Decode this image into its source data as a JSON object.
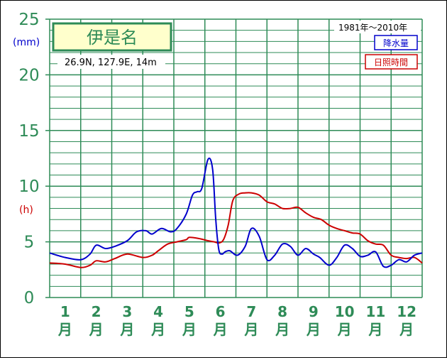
{
  "chart_data": {
    "type": "line",
    "station": "伊是名",
    "location": "26.9N,  127.9E,  14m",
    "period": "1981年〜2010年",
    "left_unit_top": "(mm)",
    "left_unit_bottom": "(h)",
    "y_ticks": [
      "0",
      "5",
      "10",
      "15",
      "20",
      "25"
    ],
    "ylim": [
      0,
      25
    ],
    "month_numbers": [
      "1",
      "2",
      "3",
      "4",
      "5",
      "6",
      "7",
      "8",
      "9",
      "10",
      "11",
      "12"
    ],
    "month_suffix": "月",
    "grid": true,
    "legend_position": "top-right",
    "series": [
      {
        "name": "降水量",
        "color": "#0000cc",
        "x": [
          0.5,
          1.0,
          1.5,
          1.8,
          2.0,
          2.3,
          2.6,
          3.0,
          3.3,
          3.6,
          3.8,
          4.1,
          4.4,
          4.6,
          4.9,
          5.1,
          5.25,
          5.4,
          5.6,
          5.75,
          5.85,
          5.95,
          6.05,
          6.15,
          6.3,
          6.55,
          6.8,
          7.0,
          7.25,
          7.5,
          7.75,
          8.0,
          8.25,
          8.5,
          8.75,
          9.0,
          9.2,
          9.5,
          9.75,
          10.0,
          10.25,
          10.5,
          10.75,
          11.0,
          11.25,
          11.5,
          11.75,
          12.0,
          12.25,
          12.5
        ],
        "values": [
          4.0,
          3.6,
          3.4,
          3.9,
          4.7,
          4.4,
          4.6,
          5.1,
          5.9,
          6.0,
          5.7,
          6.2,
          5.9,
          6.2,
          7.5,
          9.2,
          9.5,
          9.8,
          12.4,
          11.5,
          7.0,
          4.3,
          3.9,
          4.1,
          4.2,
          3.8,
          4.6,
          6.2,
          5.5,
          3.4,
          3.8,
          4.8,
          4.6,
          3.8,
          4.4,
          3.9,
          3.6,
          2.9,
          3.6,
          4.7,
          4.4,
          3.7,
          3.8,
          4.1,
          2.8,
          2.9,
          3.4,
          3.2,
          3.8,
          4.0
        ]
      },
      {
        "name": "日照時間",
        "color": "#cc0000",
        "x": [
          0.5,
          1.0,
          1.5,
          1.8,
          2.0,
          2.3,
          2.6,
          3.0,
          3.5,
          3.8,
          4.0,
          4.3,
          4.6,
          4.9,
          5.0,
          5.3,
          5.6,
          5.8,
          5.95,
          6.1,
          6.25,
          6.4,
          6.6,
          6.8,
          7.0,
          7.25,
          7.5,
          7.75,
          8.0,
          8.25,
          8.5,
          8.75,
          9.0,
          9.25,
          9.5,
          9.75,
          10.0,
          10.25,
          10.5,
          10.75,
          11.0,
          11.25,
          11.5,
          11.75,
          12.0,
          12.25,
          12.5
        ],
        "values": [
          3.1,
          3.0,
          2.7,
          2.9,
          3.3,
          3.2,
          3.5,
          3.9,
          3.6,
          3.8,
          4.2,
          4.8,
          5.0,
          5.2,
          5.4,
          5.3,
          5.1,
          5.0,
          4.9,
          5.2,
          6.5,
          8.7,
          9.3,
          9.4,
          9.4,
          9.2,
          8.6,
          8.4,
          8.0,
          8.0,
          8.1,
          7.6,
          7.2,
          7.0,
          6.5,
          6.2,
          6.0,
          5.8,
          5.7,
          5.1,
          4.8,
          4.7,
          3.8,
          3.6,
          3.5,
          3.6,
          3.1
        ]
      }
    ]
  }
}
